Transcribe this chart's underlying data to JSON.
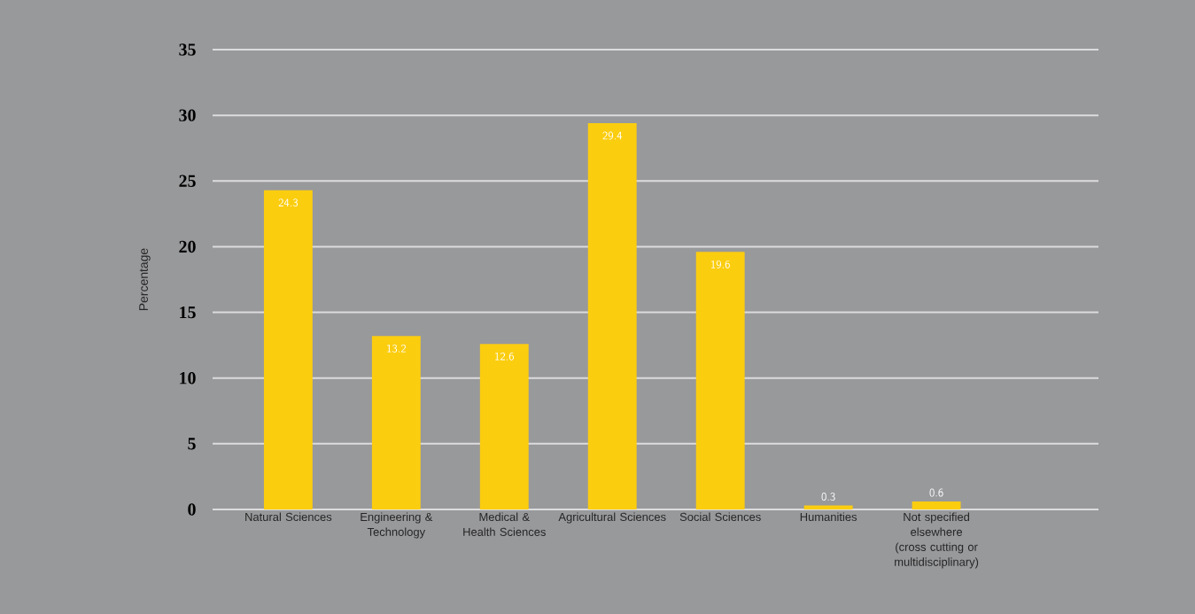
{
  "chart_data": {
    "type": "bar",
    "ylabel": "Percentage",
    "categories": [
      "Natural Sciences",
      "Engineering & Technology",
      "Medical & Health Sciences",
      "Agricultural Sciences",
      "Social Sciences",
      "Humanities",
      "Not specified elsewhere (cross cutting or multidisciplinary)"
    ],
    "values": [
      24.3,
      13.2,
      12.6,
      29.4,
      19.6,
      0.3,
      0.6
    ],
    "color": "#fbcd0f",
    "ylim": [
      0,
      35
    ],
    "yticks": [
      0,
      5,
      10,
      15,
      20,
      25,
      30,
      35
    ],
    "grid": "y",
    "data_labels": true
  }
}
